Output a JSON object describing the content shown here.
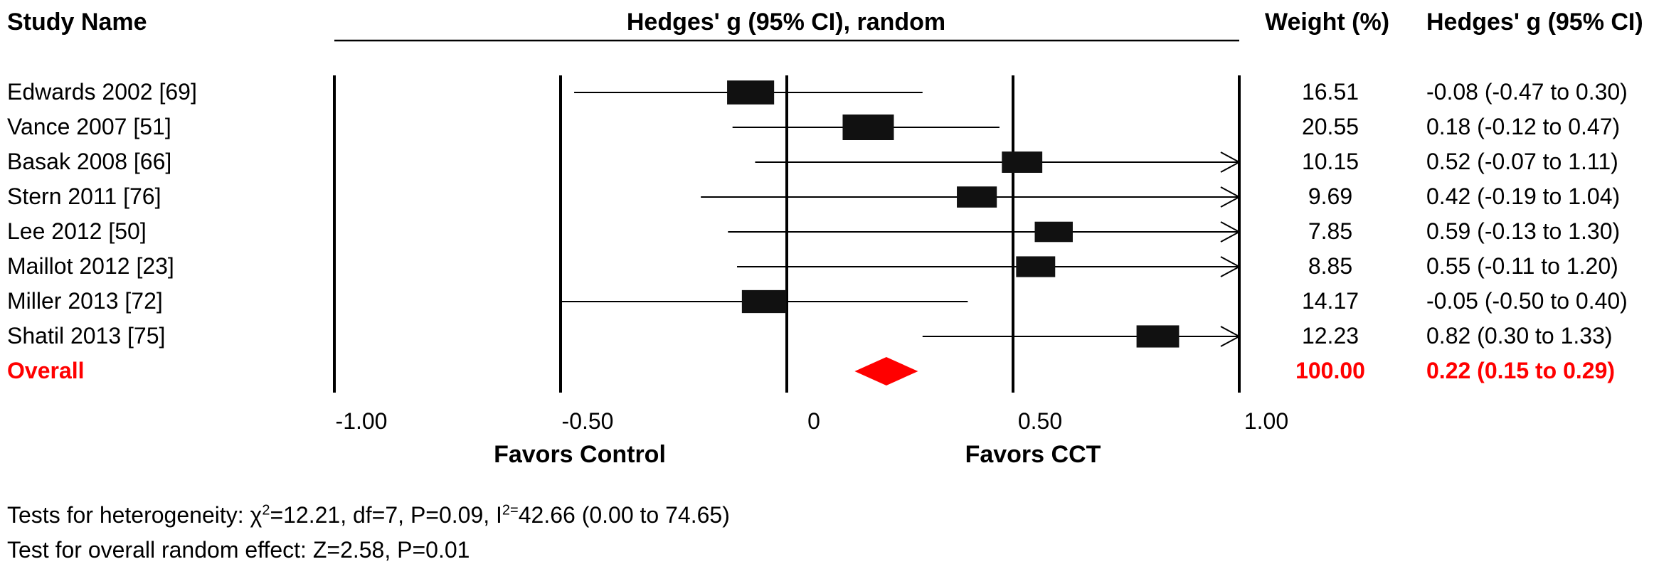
{
  "headers": {
    "study": "Study Name",
    "plot": "Hedges' g (95% CI), random",
    "weight": "Weight (%)",
    "effect": "Hedges' g (95% CI)"
  },
  "colors": {
    "overall": "#ff0000",
    "marker": "#111111"
  },
  "chart_data": {
    "type": "forest",
    "title": "Hedges' g (95% CI), random",
    "xlim": [
      -1.0,
      1.0
    ],
    "x_ticks": [
      "-1.00",
      "-0.50",
      "0",
      "0.50",
      "1.00"
    ],
    "x_tick_values": [
      -1.0,
      -0.5,
      0,
      0.5,
      1.0
    ],
    "left_label": "Favors Control",
    "right_label": "Favors CCT",
    "studies": [
      {
        "name": "Edwards 2002 [69]",
        "g": -0.08,
        "lower": -0.47,
        "upper": 0.3,
        "weight": 16.51,
        "weight_label": "16.51",
        "ci_label": "-0.08 (-0.47 to 0.30)"
      },
      {
        "name": "Vance 2007 [51]",
        "g": 0.18,
        "lower": -0.12,
        "upper": 0.47,
        "weight": 20.55,
        "weight_label": "20.55",
        "ci_label": "0.18 (-0.12 to 0.47)"
      },
      {
        "name": "Basak 2008 [66]",
        "g": 0.52,
        "lower": -0.07,
        "upper": 1.11,
        "weight": 10.15,
        "weight_label": "10.15",
        "ci_label": "0.52 (-0.07 to 1.11)"
      },
      {
        "name": "Stern 2011 [76]",
        "g": 0.42,
        "lower": -0.19,
        "upper": 1.04,
        "weight": 9.69,
        "weight_label": "9.69",
        "ci_label": "0.42 (-0.19 to 1.04)"
      },
      {
        "name": "Lee 2012 [50]",
        "g": 0.59,
        "lower": -0.13,
        "upper": 1.3,
        "weight": 7.85,
        "weight_label": "7.85",
        "ci_label": "0.59 (-0.13 to 1.30)"
      },
      {
        "name": "Maillot 2012 [23]",
        "g": 0.55,
        "lower": -0.11,
        "upper": 1.2,
        "weight": 8.85,
        "weight_label": "8.85",
        "ci_label": "0.55 (-0.11 to 1.20)"
      },
      {
        "name": "Miller 2013 [72]",
        "g": -0.05,
        "lower": -0.5,
        "upper": 0.4,
        "weight": 14.17,
        "weight_label": "14.17",
        "ci_label": "-0.05 (-0.50 to 0.40)"
      },
      {
        "name": "Shatil 2013 [75]",
        "g": 0.82,
        "lower": 0.3,
        "upper": 1.33,
        "weight": 12.23,
        "weight_label": "12.23",
        "ci_label": "0.82 (0.30 to 1.33)"
      }
    ],
    "overall": {
      "name": "Overall",
      "g": 0.22,
      "lower": 0.15,
      "upper": 0.29,
      "weight": 100.0,
      "weight_label": "100.00",
      "ci_label": "0.22 (0.15 to 0.29)"
    }
  },
  "footer": {
    "heterogeneity_prefix": "Tests for heterogeneity: χ",
    "chi_sup": "2",
    "heterogeneity_mid": "=12.21, df=7, P=0.09, I",
    "i2_sup": "2=",
    "heterogeneity_suffix": "42.66 (0.00 to 74.65)",
    "overall_effect": "Test for overall random effect: Z=2.58, P=0.01"
  }
}
